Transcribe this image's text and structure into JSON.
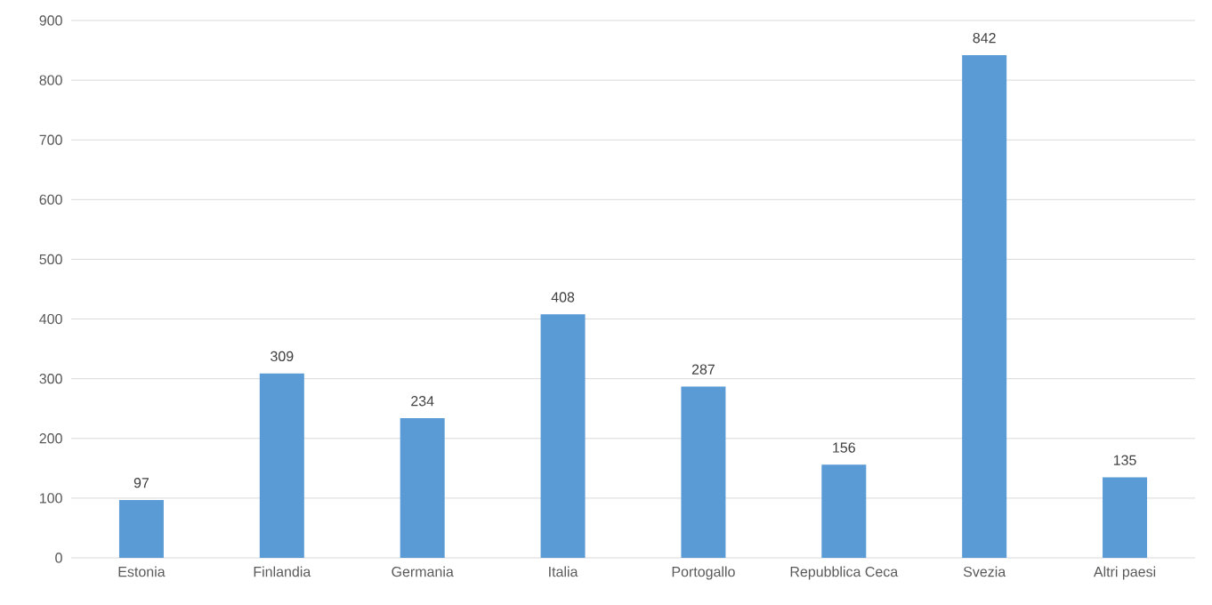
{
  "chart_data": {
    "type": "bar",
    "categories": [
      "Estonia",
      "Finlandia",
      "Germania",
      "Italia",
      "Portogallo",
      "Repubblica Ceca",
      "Svezia",
      "Altri paesi"
    ],
    "values": [
      97,
      309,
      234,
      408,
      287,
      156,
      842,
      135
    ],
    "color": "#5b9bd5",
    "ylim": [
      0,
      900
    ],
    "yticks": [
      0,
      100,
      200,
      300,
      400,
      500,
      600,
      700,
      800,
      900
    ],
    "grid": "y",
    "data_labels": true
  }
}
